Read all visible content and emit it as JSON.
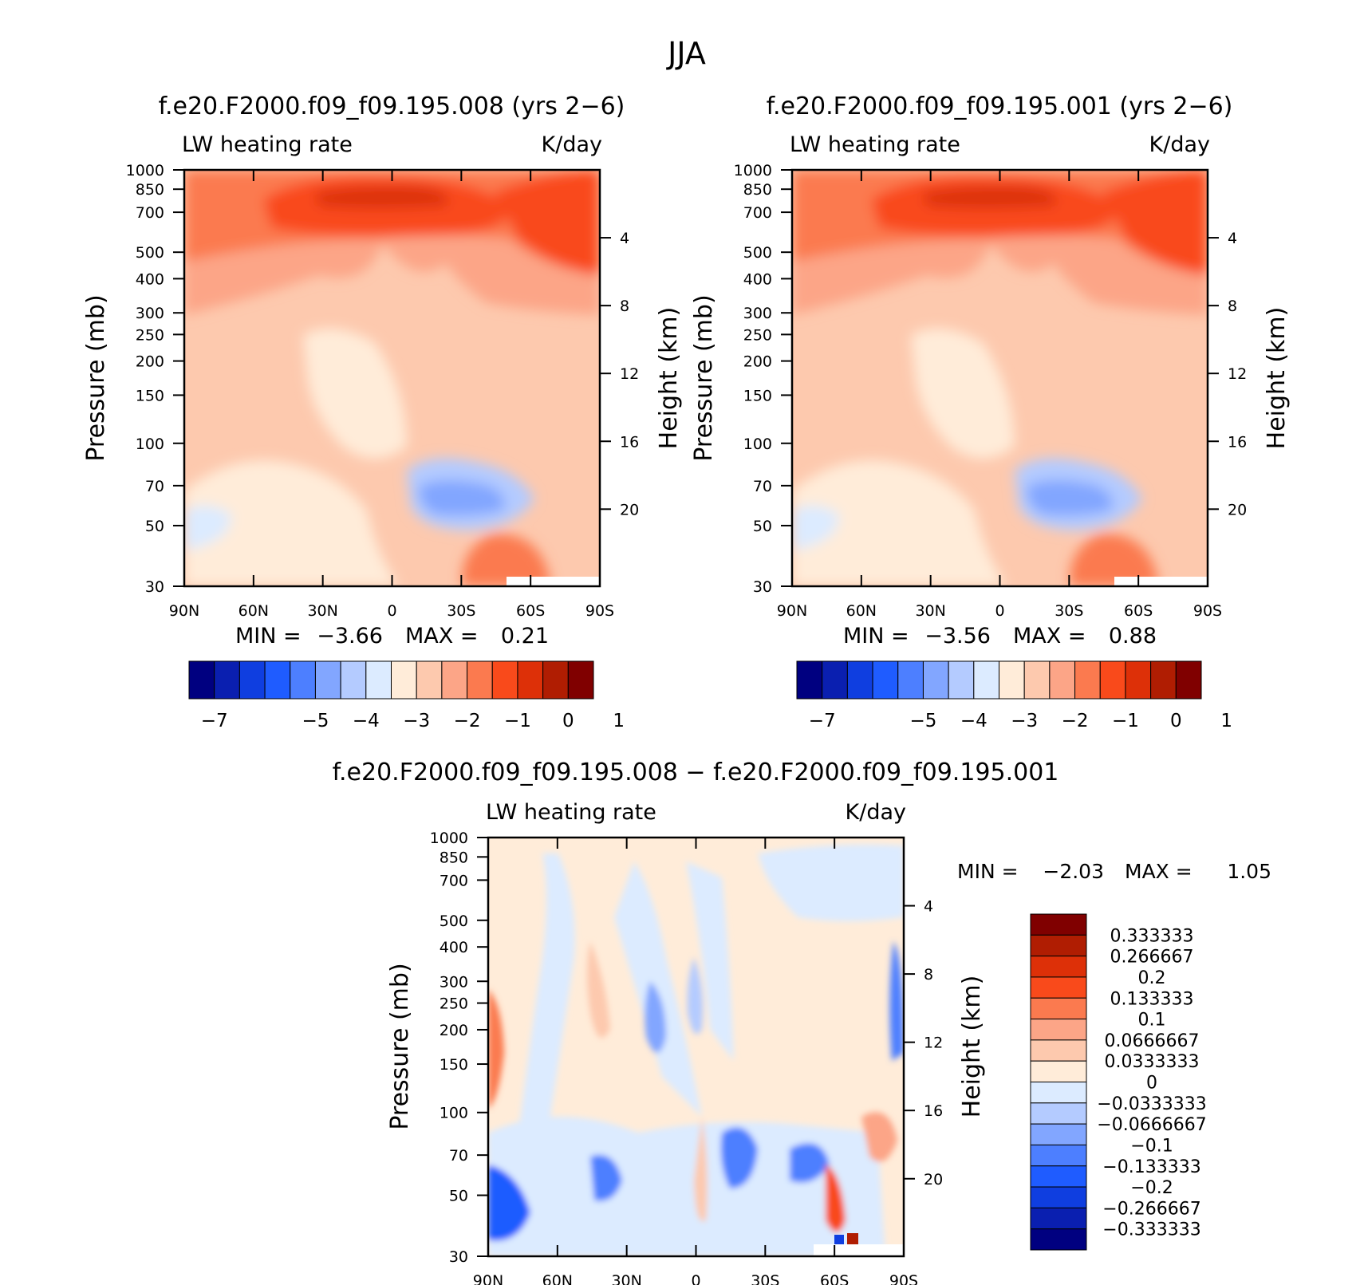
{
  "figure": {
    "title": "JJA"
  },
  "palette": {
    "full": [
      "#000080",
      "#0a1fb0",
      "#0f3ee0",
      "#1f5cff",
      "#4d7fff",
      "#82a6ff",
      "#b4cbff",
      "#dcebff",
      "#ffecd9",
      "#fdc9ae",
      "#fca587",
      "#fb7a4f",
      "#f94a1b",
      "#dd3008",
      "#b01d02",
      "#800000"
    ],
    "diff": [
      "#000080",
      "#0a1fb0",
      "#0f3ee0",
      "#1f5cff",
      "#4d7fff",
      "#82a6ff",
      "#b4cbff",
      "#dcebff",
      "#ffecd9",
      "#fdc9ae",
      "#fca587",
      "#fb7a4f",
      "#f94a1b",
      "#dd3008",
      "#b01d02",
      "#800000"
    ]
  },
  "chart_data": [
    {
      "type": "heatmap",
      "title": "f.e20.F2000.f09_f09.195.008 (yrs 2−6)",
      "left_label": "LW heating rate",
      "right_label": "K/day",
      "ylabel": "Pressure (mb)",
      "ylabel_right": "Height (km)",
      "x_ticks": [
        "90N",
        "60N",
        "30N",
        "0",
        "30S",
        "60S",
        "90S"
      ],
      "y_ticks": [
        "30",
        "50",
        "70",
        "100",
        "150",
        "200",
        "250",
        "300",
        "400",
        "500",
        "700",
        "850",
        "1000"
      ],
      "y_ticks_right": [
        "20",
        "16",
        "12",
        "8",
        "4"
      ],
      "ylim": [
        1000,
        30
      ],
      "min_label": "MIN =",
      "min_value": "−3.66",
      "max_label": "MAX =",
      "max_value": "0.21",
      "colorbar_labels": [
        "−7",
        "−5",
        "−4",
        "−3",
        "−2",
        "−1",
        "0",
        "1"
      ],
      "colorbar_levels": [
        -7,
        -6.5,
        -6,
        -5.5,
        -5,
        -4.5,
        -4,
        -3.5,
        -3,
        -2.5,
        -2,
        -1.5,
        -1,
        -0.5,
        0,
        0.5,
        1
      ]
    },
    {
      "type": "heatmap",
      "title": "f.e20.F2000.f09_f09.195.001 (yrs 2−6)",
      "left_label": "LW heating rate",
      "right_label": "K/day",
      "ylabel": "Pressure (mb)",
      "ylabel_right": "Height (km)",
      "x_ticks": [
        "90N",
        "60N",
        "30N",
        "0",
        "30S",
        "60S",
        "90S"
      ],
      "y_ticks": [
        "30",
        "50",
        "70",
        "100",
        "150",
        "200",
        "250",
        "300",
        "400",
        "500",
        "700",
        "850",
        "1000"
      ],
      "y_ticks_right": [
        "20",
        "16",
        "12",
        "8",
        "4"
      ],
      "ylim": [
        1000,
        30
      ],
      "min_label": "MIN =",
      "min_value": "−3.56",
      "max_label": "MAX =",
      "max_value": "0.88",
      "colorbar_labels": [
        "−7",
        "−5",
        "−4",
        "−3",
        "−2",
        "−1",
        "0",
        "1"
      ],
      "colorbar_levels": [
        -7,
        -6.5,
        -6,
        -5.5,
        -5,
        -4.5,
        -4,
        -3.5,
        -3,
        -2.5,
        -2,
        -1.5,
        -1,
        -0.5,
        0,
        0.5,
        1
      ]
    },
    {
      "type": "heatmap",
      "title": "f.e20.F2000.f09_f09.195.008 − f.e20.F2000.f09_f09.195.001",
      "left_label": "LW heating rate",
      "right_label": "K/day",
      "ylabel": "Pressure (mb)",
      "ylabel_right": "Height (km)",
      "x_ticks": [
        "90N",
        "60N",
        "30N",
        "0",
        "30S",
        "60S",
        "90S"
      ],
      "y_ticks": [
        "30",
        "50",
        "70",
        "100",
        "150",
        "200",
        "250",
        "300",
        "400",
        "500",
        "700",
        "850",
        "1000"
      ],
      "y_ticks_right": [
        "20",
        "16",
        "12",
        "8",
        "4"
      ],
      "ylim": [
        1000,
        30
      ],
      "min_label": "MIN =",
      "min_value": "−2.03",
      "max_label": "MAX =",
      "max_value": "1.05",
      "colorbar_labels": [
        "0.333333",
        "0.266667",
        "0.2",
        "0.133333",
        "0.1",
        "0.0666667",
        "0.0333333",
        "0",
        "−0.0333333",
        "−0.0666667",
        "−0.1",
        "−0.133333",
        "−0.2",
        "−0.266667",
        "−0.333333"
      ]
    }
  ]
}
